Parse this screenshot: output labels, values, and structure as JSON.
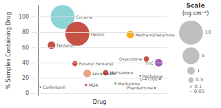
{
  "chart_data": {
    "type": "scatter",
    "xlabel": "Drug",
    "ylabel": "% Samples Containing Drug",
    "names": [
      "Cocaine",
      "Heroin",
      "Fentanyl",
      "Furanyl Fentanyl",
      "Levamisole",
      "MDA",
      "Methadone",
      "Methylone",
      "Methamphetamine",
      "Pentylone",
      "Oxycodone",
      "THC",
      "U-47700",
      "Carfentanil",
      "Phentermine"
    ],
    "x": [
      2,
      3.2,
      1.1,
      3.0,
      4.0,
      3.9,
      5.5,
      6.3,
      7.5,
      8.3,
      8.8,
      9.8,
      9.9,
      0.2,
      9.5
    ],
    "values": [
      100,
      78,
      63,
      39,
      26,
      11,
      27,
      13,
      77,
      23,
      45,
      40,
      19,
      8,
      7
    ],
    "sizes": [
      10,
      10,
      1,
      0.5,
      1,
      0.1,
      0.5,
      0.1,
      1,
      0.05,
      0.5,
      1,
      0.1,
      0.05,
      0.05
    ],
    "colors": [
      "#7dcfcf",
      "#c0392b",
      "#c0392b",
      "#c0392b",
      "#e8956d",
      "#e91e8c",
      "#c0392b",
      "#5cb85c",
      "#f0a500",
      "#444444",
      "#c0392b",
      "#8e44ad",
      "#c0392b",
      "#c0392b",
      "#444444"
    ],
    "xlim": [
      -0.5,
      10.5
    ],
    "ylim": [
      -3,
      115
    ],
    "yticks": [
      0,
      20,
      40,
      60,
      80,
      100
    ],
    "grid": true,
    "tick_labels": "y",
    "size_legend": {
      "title": "Scale",
      "unit": "(ng cm⁻²)",
      "values": [
        10,
        5,
        1,
        0.5,
        0.1,
        0.05
      ],
      "color": "#aaaaaa"
    }
  }
}
